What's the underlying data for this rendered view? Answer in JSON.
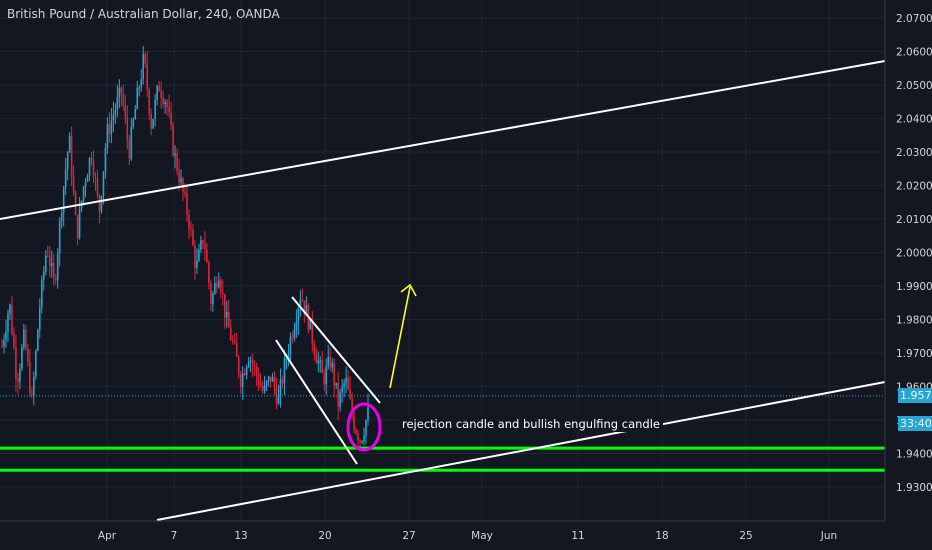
{
  "header": {
    "title": "British Pound / Australian Dollar, 240, OANDA"
  },
  "annotation": {
    "text": "rejection candle and bullish engulfing candle"
  },
  "price_axis": {
    "ticks": [
      "2.07000",
      "2.06000",
      "2.05000",
      "2.04000",
      "2.03000",
      "2.02000",
      "2.01000",
      "2.00000",
      "1.99000",
      "1.98000",
      "1.97000",
      "1.96000",
      "1.95000",
      "1.94000",
      "1.93000"
    ],
    "current_price": "1.95720",
    "countdown": "33:40"
  },
  "time_axis": {
    "ticks": [
      "Apr",
      "7",
      "13",
      "20",
      "27",
      "May",
      "11",
      "18",
      "25",
      "Jun"
    ]
  },
  "colors": {
    "background": "#131722",
    "up": "#26a6d1",
    "down": "#d8283a",
    "trendline": "#ffffff",
    "support": "#00ff00",
    "arrow": "#ffff1a",
    "marker": "#e600e6",
    "grid": "#1f2433",
    "price_line": "#26a6d1"
  },
  "chart_data": {
    "type": "candlestick",
    "title": "British Pound / Australian Dollar, 240, OANDA",
    "ylim": [
      1.925,
      2.075
    ],
    "y_ticks": [
      1.93,
      1.94,
      1.95,
      1.96,
      1.97,
      1.98,
      1.99,
      2.0,
      2.01,
      2.02,
      2.03,
      2.04,
      2.05,
      2.06,
      2.07
    ],
    "x_ticks": [
      "Apr",
      "7",
      "13",
      "20",
      "27",
      "May",
      "11",
      "18",
      "25",
      "Jun"
    ],
    "price_path": [
      1.972,
      1.985,
      1.962,
      1.975,
      1.955,
      1.983,
      2.002,
      1.99,
      2.015,
      2.034,
      2.005,
      2.021,
      2.03,
      2.012,
      2.035,
      2.042,
      2.048,
      2.03,
      2.045,
      2.058,
      2.038,
      2.05,
      2.045,
      2.03,
      2.02,
      2.01,
      1.995,
      2.005,
      1.985,
      1.995,
      1.98,
      1.972,
      1.962,
      1.97,
      1.964,
      1.958,
      1.963,
      1.956,
      1.968,
      1.978,
      1.988,
      1.98,
      1.97,
      1.962,
      1.968,
      1.955,
      1.962,
      1.95,
      1.944,
      1.952
    ],
    "last_price": 1.9572,
    "support_levels": [
      1.9416,
      1.935
    ],
    "trendlines": [
      {
        "name": "upper channel",
        "from": [
          "Mar 24",
          2.012
        ],
        "to": [
          "Jun 5",
          2.058
        ]
      },
      {
        "name": "lower channel",
        "from": [
          "Apr 1",
          1.927
        ],
        "to": [
          "Jun 5",
          1.965
        ]
      },
      {
        "name": "falling wedge top",
        "from": [
          "Apr 17",
          1.99
        ],
        "to": [
          "Apr 25",
          1.959
        ]
      },
      {
        "name": "falling wedge bottom",
        "from": [
          "Apr 15",
          1.978
        ],
        "to": [
          "Apr 22",
          1.941
        ]
      }
    ],
    "annotations": [
      "rejection candle and bullish engulfing candle",
      "yellow arrow pointing up toward 1.99"
    ]
  }
}
